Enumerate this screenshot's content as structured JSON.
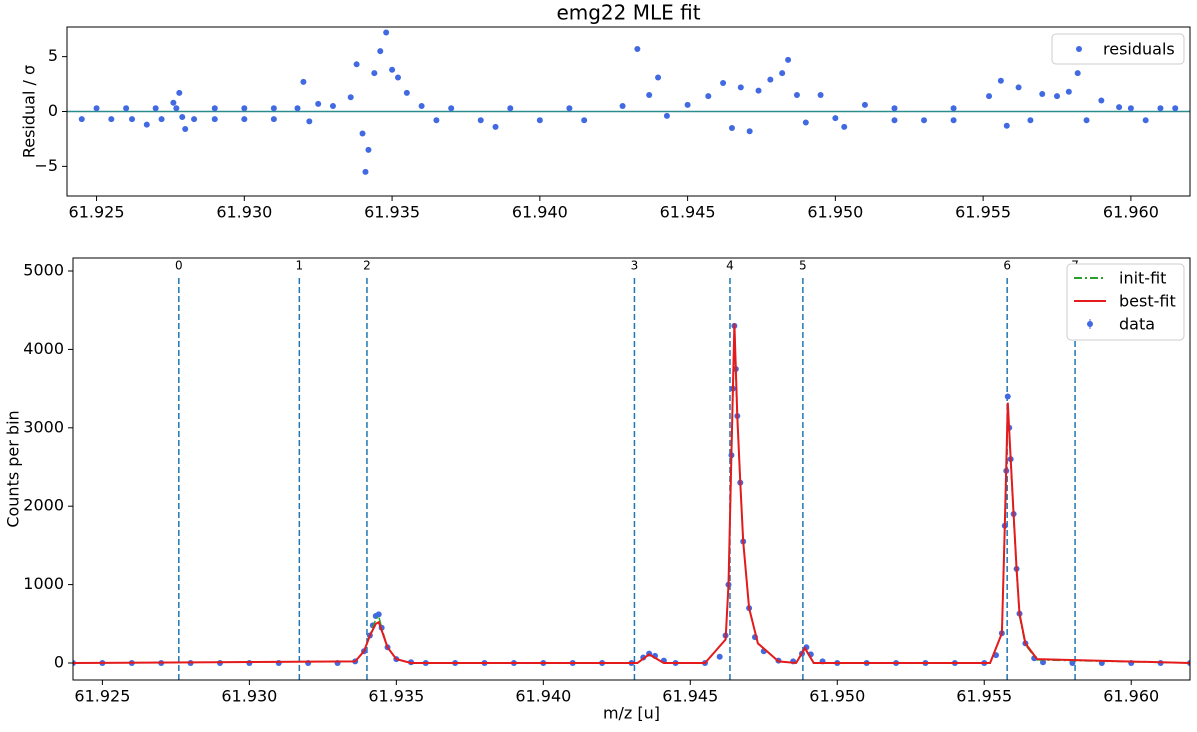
{
  "chart_data": [
    {
      "type": "scatter",
      "title": "emg22 MLE fit",
      "ylabel": "Residual / σ",
      "xlim": [
        61.924,
        61.962
      ],
      "ylim": [
        -7.7,
        7.7
      ],
      "xticks": [
        {
          "value": 61.925,
          "label": "61.925"
        },
        {
          "value": 61.93,
          "label": "61.930"
        },
        {
          "value": 61.935,
          "label": "61.935"
        },
        {
          "value": 61.94,
          "label": "61.940"
        },
        {
          "value": 61.945,
          "label": "61.945"
        },
        {
          "value": 61.95,
          "label": "61.950"
        },
        {
          "value": 61.955,
          "label": "61.955"
        },
        {
          "value": 61.96,
          "label": "61.960"
        }
      ],
      "yticks": [
        {
          "value": -5,
          "label": "−5"
        },
        0,
        5
      ],
      "zero_line_color": "#2a8c8c",
      "legend": "upper right",
      "series": [
        {
          "name": "residuals",
          "color": "#4169e1",
          "x": [
            61.9245,
            61.9255,
            61.9262,
            61.9267,
            61.9272,
            61.9276,
            61.9277,
            61.9278,
            61.9279,
            61.928,
            61.9283,
            61.929,
            61.93,
            61.931,
            61.9318,
            61.932,
            61.9322,
            61.9325,
            61.933,
            61.9336,
            61.9338,
            61.934,
            61.9341,
            61.9342,
            61.9344,
            61.9346,
            61.9348,
            61.935,
            61.9352,
            61.9355,
            61.936,
            61.9365,
            61.938,
            61.9385,
            61.94,
            61.9415,
            61.9428,
            61.9433,
            61.9437,
            61.944,
            61.9443,
            61.945,
            61.9457,
            61.9462,
            61.9465,
            61.9468,
            61.9471,
            61.9474,
            61.9478,
            61.9482,
            61.9484,
            61.9487,
            61.949,
            61.9495,
            61.95,
            61.9503,
            61.951,
            61.952,
            61.953,
            61.954,
            61.9552,
            61.9556,
            61.9558,
            61.9562,
            61.9566,
            61.957,
            61.9575,
            61.9579,
            61.9582,
            61.9585,
            61.959,
            61.9596,
            61.9605,
            61.9615,
            61.925,
            61.926,
            61.927,
            61.929,
            61.93,
            61.931,
            61.937,
            61.939,
            61.941,
            61.952,
            61.954,
            61.96,
            61.961
          ],
          "values": [
            -0.7,
            -0.7,
            -0.7,
            -1.2,
            -0.7,
            0.8,
            0.3,
            1.7,
            -0.5,
            -1.6,
            -0.7,
            -0.7,
            -0.7,
            -0.7,
            0.3,
            2.7,
            -0.9,
            0.7,
            0.5,
            1.3,
            4.3,
            -2.0,
            -5.5,
            -3.5,
            3.5,
            5.5,
            7.2,
            3.8,
            3.1,
            1.7,
            0.5,
            -0.8,
            -0.8,
            -1.4,
            -0.8,
            -0.8,
            0.5,
            5.7,
            1.5,
            3.1,
            -0.4,
            0.6,
            1.4,
            2.6,
            -1.5,
            2.2,
            -1.8,
            1.9,
            2.9,
            3.5,
            4.7,
            1.5,
            -1.0,
            1.5,
            -0.6,
            -1.4,
            0.6,
            -0.8,
            -0.8,
            -0.8,
            1.4,
            2.8,
            -1.3,
            2.2,
            -0.8,
            1.6,
            1.4,
            1.8,
            3.5,
            -0.8,
            1.0,
            0.4,
            -0.8,
            0.3,
            0.3,
            0.3,
            0.3,
            0.3,
            0.3,
            0.3,
            0.3,
            0.3,
            0.3,
            0.3,
            0.3,
            0.3,
            0.3
          ]
        }
      ]
    },
    {
      "type": "line",
      "xlabel": "m/z [u]",
      "ylabel": "Counts per bin",
      "xlim": [
        61.924,
        61.962
      ],
      "ylim": [
        -217,
        5166
      ],
      "xticks": [
        {
          "value": 61.925,
          "label": "61.925"
        },
        {
          "value": 61.93,
          "label": "61.930"
        },
        {
          "value": 61.935,
          "label": "61.935"
        },
        {
          "value": 61.94,
          "label": "61.940"
        },
        {
          "value": 61.945,
          "label": "61.945"
        },
        {
          "value": 61.95,
          "label": "61.950"
        },
        {
          "value": 61.955,
          "label": "61.955"
        },
        {
          "value": 61.96,
          "label": "61.960"
        }
      ],
      "yticks": [
        0,
        1000,
        2000,
        3000,
        4000,
        5000
      ],
      "legend": "upper right",
      "markers": {
        "color": "#1f77b4",
        "labels": [
          "0",
          "1",
          "2",
          "3",
          "4",
          "5",
          "6",
          "7"
        ],
        "x": [
          61.9276,
          61.9317,
          61.934,
          61.9431,
          61.94635,
          61.94883,
          61.95578,
          61.95809
        ]
      },
      "series": [
        {
          "name": "init-fit",
          "color": "#2ca02c",
          "style": "dashdot",
          "x": [
            61.924,
            61.9336,
            61.9339,
            61.9341,
            61.9343,
            61.9344,
            61.9345,
            61.9347,
            61.935,
            61.9355,
            61.9432,
            61.9436,
            61.9441,
            61.9455,
            61.9462,
            61.9463,
            61.9464,
            61.9465,
            61.9466,
            61.9467,
            61.9468,
            61.947,
            61.9473,
            61.948,
            61.9486,
            61.9489,
            61.9492,
            61.9497,
            61.9552,
            61.9556,
            61.9557,
            61.9558,
            61.9559,
            61.956,
            61.9561,
            61.9562,
            61.9564,
            61.9568,
            61.962
          ],
          "values": [
            0,
            20,
            150,
            350,
            560,
            600,
            450,
            200,
            50,
            0,
            0,
            110,
            0,
            0,
            300,
            1000,
            2600,
            4200,
            3100,
            2300,
            1550,
            700,
            250,
            20,
            0,
            180,
            0,
            0,
            0,
            380,
            1700,
            3250,
            2550,
            1850,
            1150,
            600,
            230,
            40,
            0
          ]
        },
        {
          "name": "best-fit",
          "color": "#e41a1c",
          "style": "solid",
          "x": [
            61.924,
            61.9336,
            61.9339,
            61.9341,
            61.9343,
            61.9344,
            61.9345,
            61.9347,
            61.935,
            61.9355,
            61.9432,
            61.9436,
            61.9441,
            61.9455,
            61.9462,
            61.9463,
            61.9464,
            61.9465,
            61.9466,
            61.9467,
            61.9468,
            61.947,
            61.9473,
            61.948,
            61.9486,
            61.9489,
            61.9492,
            61.9497,
            61.9552,
            61.9556,
            61.9557,
            61.9558,
            61.9559,
            61.956,
            61.9561,
            61.9562,
            61.9564,
            61.9568,
            61.962
          ],
          "values": [
            0,
            20,
            150,
            350,
            500,
            520,
            420,
            200,
            50,
            0,
            0,
            110,
            0,
            0,
            300,
            1000,
            2650,
            4330,
            3150,
            2300,
            1550,
            700,
            250,
            20,
            0,
            190,
            0,
            0,
            0,
            380,
            1750,
            3320,
            2600,
            1900,
            1200,
            630,
            250,
            50,
            0
          ]
        },
        {
          "name": "data",
          "color": "#4169e1",
          "style": "points",
          "x": [
            61.924,
            61.925,
            61.926,
            61.927,
            61.928,
            61.929,
            61.93,
            61.931,
            61.932,
            61.933,
            61.9336,
            61.9339,
            61.9341,
            61.9342,
            61.9343,
            61.9344,
            61.9345,
            61.9347,
            61.935,
            61.9355,
            61.936,
            61.937,
            61.938,
            61.939,
            61.94,
            61.941,
            61.942,
            61.943,
            61.9434,
            61.9436,
            61.9438,
            61.9441,
            61.9445,
            61.9455,
            61.946,
            61.9462,
            61.9463,
            61.9464,
            61.94645,
            61.9465,
            61.94655,
            61.9466,
            61.9467,
            61.9468,
            61.947,
            61.9472,
            61.9475,
            61.948,
            61.9485,
            61.9488,
            61.94895,
            61.9491,
            61.9495,
            61.95,
            61.951,
            61.952,
            61.953,
            61.954,
            61.955,
            61.9554,
            61.9556,
            61.9557,
            61.95575,
            61.9558,
            61.95585,
            61.9559,
            61.956,
            61.9561,
            61.9562,
            61.9564,
            61.9567,
            61.957,
            61.958,
            61.959,
            61.96,
            61.961,
            61.962
          ],
          "values": [
            0,
            0,
            0,
            0,
            0,
            0,
            0,
            0,
            0,
            0,
            20,
            150,
            350,
            480,
            600,
            620,
            450,
            200,
            50,
            10,
            0,
            0,
            0,
            0,
            0,
            0,
            0,
            0,
            70,
            120,
            90,
            30,
            0,
            0,
            80,
            350,
            1000,
            2650,
            3500,
            4300,
            3750,
            3150,
            2300,
            1550,
            700,
            330,
            150,
            30,
            20,
            120,
            200,
            110,
            20,
            0,
            0,
            0,
            0,
            0,
            0,
            100,
            380,
            1750,
            2450,
            3400,
            3000,
            2600,
            1900,
            1200,
            630,
            250,
            60,
            10,
            0,
            0,
            0,
            0,
            0
          ]
        }
      ]
    }
  ]
}
